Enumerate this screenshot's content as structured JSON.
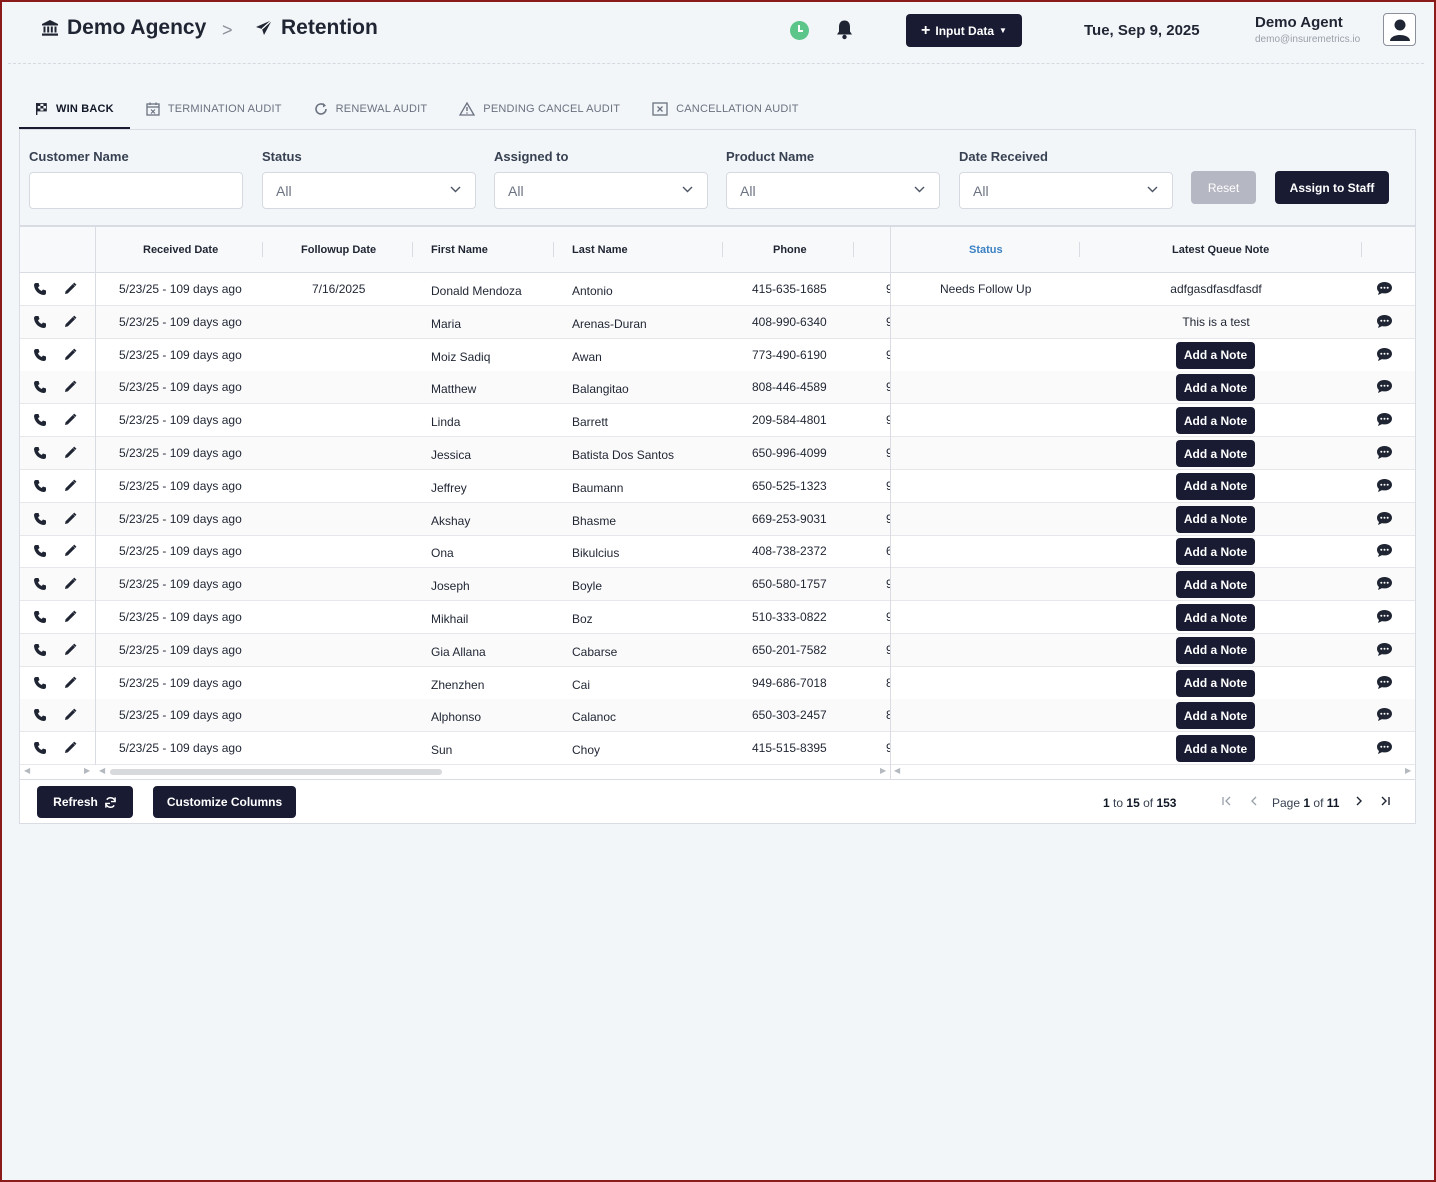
{
  "header": {
    "agency": "Demo Agency",
    "separator": ">",
    "section": "Retention",
    "input_data_label": "Input Data",
    "date": "Tue, Sep 9, 2025",
    "user_name": "Demo Agent",
    "user_email": "demo@insuremetrics.io"
  },
  "tabs": [
    {
      "label": "WIN BACK",
      "icon": "checkered-flag-icon",
      "active": true
    },
    {
      "label": "TERMINATION AUDIT",
      "icon": "calendar-x-icon",
      "active": false
    },
    {
      "label": "RENEWAL AUDIT",
      "icon": "refresh-icon",
      "active": false
    },
    {
      "label": "PENDING CANCEL AUDIT",
      "icon": "warning-icon",
      "active": false
    },
    {
      "label": "CANCELLATION AUDIT",
      "icon": "square-x-icon",
      "active": false
    }
  ],
  "filters": {
    "customer_name": {
      "label": "Customer Name",
      "value": ""
    },
    "status": {
      "label": "Status",
      "value": "All"
    },
    "assigned_to": {
      "label": "Assigned to",
      "value": "All"
    },
    "product_name": {
      "label": "Product Name",
      "value": "All"
    },
    "date_received": {
      "label": "Date Received",
      "value": "All"
    },
    "reset_label": "Reset",
    "assign_label": "Assign to Staff"
  },
  "table": {
    "columns": {
      "received_date": "Received Date",
      "followup_date": "Followup Date",
      "first_name": "First Name",
      "last_name": "Last Name",
      "phone": "Phone",
      "status": "Status",
      "latest_note": "Latest Queue Note"
    },
    "add_note_label": "Add a Note",
    "rows": [
      {
        "received": "5/23/25 - 109 days ago",
        "followup": "7/16/2025",
        "first": "Donald Mendoza",
        "last": "Antonio",
        "phone": "415-635-1685",
        "trunc": "9",
        "status": "Needs Follow Up",
        "note": "adfgasdfasdfasdf"
      },
      {
        "received": "5/23/25 - 109 days ago",
        "followup": "",
        "first": "Maria",
        "last": "Arenas-Duran",
        "phone": "408-990-6340",
        "trunc": "9",
        "status": "",
        "note": "This is a test"
      },
      {
        "received": "5/23/25 - 109 days ago",
        "followup": "",
        "first": "Moiz Sadiq",
        "last": "Awan",
        "phone": "773-490-6190",
        "trunc": "9",
        "status": "",
        "note": ""
      },
      {
        "received": "5/23/25 - 109 days ago",
        "followup": "",
        "first": "Matthew",
        "last": "Balangitao",
        "phone": "808-446-4589",
        "trunc": "9",
        "status": "",
        "note": ""
      },
      {
        "received": "5/23/25 - 109 days ago",
        "followup": "",
        "first": "Linda",
        "last": "Barrett",
        "phone": "209-584-4801",
        "trunc": "9",
        "status": "",
        "note": ""
      },
      {
        "received": "5/23/25 - 109 days ago",
        "followup": "",
        "first": "Jessica",
        "last": "Batista Dos Santos",
        "phone": "650-996-4099",
        "trunc": "9",
        "status": "",
        "note": ""
      },
      {
        "received": "5/23/25 - 109 days ago",
        "followup": "",
        "first": "Jeffrey",
        "last": "Baumann",
        "phone": "650-525-1323",
        "trunc": "9",
        "status": "",
        "note": ""
      },
      {
        "received": "5/23/25 - 109 days ago",
        "followup": "",
        "first": "Akshay",
        "last": "Bhasme",
        "phone": "669-253-9031",
        "trunc": "9",
        "status": "",
        "note": ""
      },
      {
        "received": "5/23/25 - 109 days ago",
        "followup": "",
        "first": "Ona",
        "last": "Bikulcius",
        "phone": "408-738-2372",
        "trunc": "6",
        "status": "",
        "note": ""
      },
      {
        "received": "5/23/25 - 109 days ago",
        "followup": "",
        "first": "Joseph",
        "last": "Boyle",
        "phone": "650-580-1757",
        "trunc": "9",
        "status": "",
        "note": ""
      },
      {
        "received": "5/23/25 - 109 days ago",
        "followup": "",
        "first": "Mikhail",
        "last": "Boz",
        "phone": "510-333-0822",
        "trunc": "9",
        "status": "",
        "note": ""
      },
      {
        "received": "5/23/25 - 109 days ago",
        "followup": "",
        "first": "Gia Allana",
        "last": "Cabarse",
        "phone": "650-201-7582",
        "trunc": "9",
        "status": "",
        "note": ""
      },
      {
        "received": "5/23/25 - 109 days ago",
        "followup": "",
        "first": "Zhenzhen",
        "last": "Cai",
        "phone": "949-686-7018",
        "trunc": "8",
        "status": "",
        "note": ""
      },
      {
        "received": "5/23/25 - 109 days ago",
        "followup": "",
        "first": "Alphonso",
        "last": "Calanoc",
        "phone": "650-303-2457",
        "trunc": "8",
        "status": "",
        "note": ""
      },
      {
        "received": "5/23/25 - 109 days ago",
        "followup": "",
        "first": "Sun",
        "last": "Choy",
        "phone": "415-515-8395",
        "trunc": "9",
        "status": "",
        "note": ""
      }
    ]
  },
  "footer": {
    "refresh_label": "Refresh",
    "customize_label": "Customize Columns",
    "range_from": "1",
    "range_to_word": "to",
    "range_to": "15",
    "of_word": "of",
    "total": "153",
    "page_word": "Page",
    "page_current": "1",
    "page_of_word": "of",
    "page_total": "11"
  },
  "colors": {
    "accent": "#191b33",
    "status_header": "#3b82c4",
    "clock": "#5cc58a"
  }
}
